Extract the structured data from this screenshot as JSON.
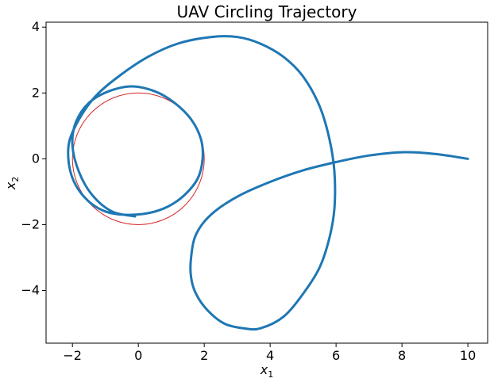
{
  "chart_data": {
    "type": "line",
    "title": "UAV Circling Trajectory",
    "xlabel": {
      "base": "x",
      "sub": "1"
    },
    "ylabel": {
      "base": "x",
      "sub": "2"
    },
    "xlim": [
      -2.8,
      10.6
    ],
    "ylim": [
      -5.6,
      4.15
    ],
    "xticks": [
      -2,
      0,
      2,
      4,
      6,
      8,
      10
    ],
    "xtick_labels": [
      "−2",
      "0",
      "2",
      "4",
      "6",
      "8",
      "10"
    ],
    "yticks": [
      -4,
      -2,
      0,
      2,
      4
    ],
    "ytick_labels": [
      "−4",
      "−2",
      "0",
      "2",
      "4"
    ],
    "grid": false,
    "series": [
      {
        "kind": "trajectory",
        "color": "#1f77b4",
        "x": [
          10,
          9,
          8,
          7,
          6,
          5,
          4,
          3,
          2.2,
          1.75,
          1.6,
          1.6,
          1.75,
          2.1,
          2.6,
          3.2,
          3.7,
          4.4,
          5.0,
          5.5,
          5.8,
          5.95,
          5.95,
          5.8,
          5.5,
          5.0,
          4.4,
          3.7,
          3.0,
          2.2,
          1.2,
          0.3,
          -0.6,
          -1.3,
          -1.8,
          -2.1,
          -2.1,
          -1.9,
          -1.5,
          -1.0,
          -0.4,
          0.3,
          0.9,
          1.4,
          1.8,
          1.95,
          1.9,
          1.6,
          1.1,
          0.5,
          -0.2,
          -0.9,
          -1.5,
          -1.9,
          -2.0,
          -1.8,
          -1.4,
          -0.8,
          -0.1
        ],
        "y": [
          0,
          0.15,
          0.2,
          0.1,
          -0.1,
          -0.35,
          -0.7,
          -1.15,
          -1.7,
          -2.3,
          -3.0,
          -3.6,
          -4.1,
          -4.6,
          -5.0,
          -5.15,
          -5.15,
          -4.8,
          -4.1,
          -3.3,
          -2.4,
          -1.5,
          -0.4,
          0.6,
          1.6,
          2.5,
          3.1,
          3.5,
          3.7,
          3.7,
          3.5,
          3.1,
          2.5,
          1.9,
          1.2,
          0.5,
          -0.2,
          -0.8,
          -1.3,
          -1.6,
          -1.7,
          -1.65,
          -1.45,
          -1.1,
          -0.6,
          0.0,
          0.6,
          1.2,
          1.7,
          2.05,
          2.2,
          2.05,
          1.7,
          1.1,
          0.4,
          -0.4,
          -1.1,
          -1.6,
          -1.75
        ]
      },
      {
        "kind": "reference-circle",
        "color": "#d62728",
        "center": [
          0,
          0
        ],
        "radius": 2
      }
    ]
  }
}
